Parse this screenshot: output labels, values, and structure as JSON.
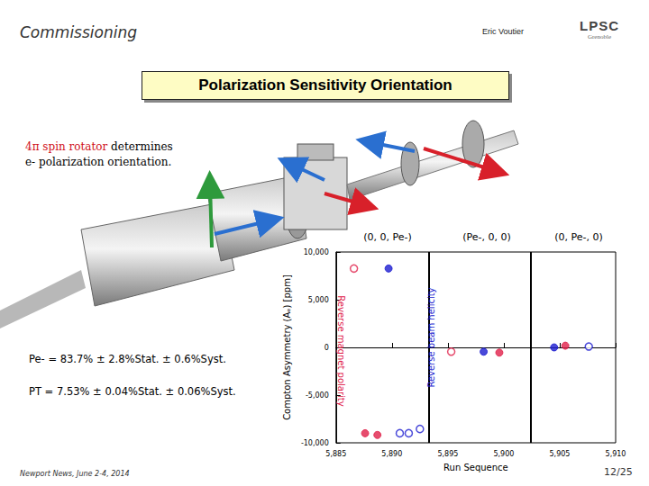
{
  "header": {
    "section": "Commissioning",
    "author": "Eric Voutier",
    "logo": "LPSC",
    "logo_sub": "Grenoble"
  },
  "title": "Polarization Sensitivity Orientation",
  "caption": {
    "highlight": "4π spin rotator",
    "rest": "determines",
    "line2": "e- polarization orientation."
  },
  "results": [
    "Pe- = 83.7% ± 2.8%Stat. ± 0.6%Syst.",
    "PT = 7.53% ± 0.04%Stat. ± 0.06%Syst."
  ],
  "footer": {
    "left": "Newport News, June 2-4, 2014",
    "right": "12/25"
  },
  "chart_data": {
    "type": "scatter",
    "xlabel": "Run Sequence",
    "ylabel": "Compton Asymmetry (Aₑ) [ppm]",
    "xlim": [
      5885,
      5910
    ],
    "xticks": [
      5885,
      5890,
      5895,
      5900,
      5905,
      5910
    ],
    "ylim": [
      -10000,
      10000
    ],
    "yticks": [
      -10000,
      -5000,
      0,
      5000,
      10000
    ],
    "grid": false,
    "column_labels": [
      "(0, 0, Pe-)",
      "(Pe-, 0, 0)",
      "(0, Pe-, 0)"
    ],
    "annotations": [
      {
        "text": "Reverse magnet polarity",
        "color": "#e0204a"
      },
      {
        "text": "Reverse beam helicity",
        "color": "#1c1cd0"
      }
    ],
    "vlines": [
      5893.3,
      5902.4
    ],
    "series": [
      {
        "color": "#e0204a",
        "marker": "open",
        "x": [
          5886.6,
          5895.3
        ],
        "values": [
          8270,
          -450
        ]
      },
      {
        "color": "#e0204a",
        "marker": "filled",
        "x": [
          5887.6,
          5888.7,
          5899.6,
          5905.5
        ],
        "values": [
          -9000,
          -9180,
          -550,
          180
        ]
      },
      {
        "color": "#1c1cd0",
        "marker": "open",
        "x": [
          5890.7,
          5891.5,
          5892.5,
          5907.6
        ],
        "values": [
          -9000,
          -9000,
          -8550,
          90
        ]
      },
      {
        "color": "#1c1cd0",
        "marker": "filled",
        "x": [
          5889.7,
          5898.2,
          5904.5
        ],
        "values": [
          8270,
          -450,
          0
        ]
      }
    ]
  }
}
